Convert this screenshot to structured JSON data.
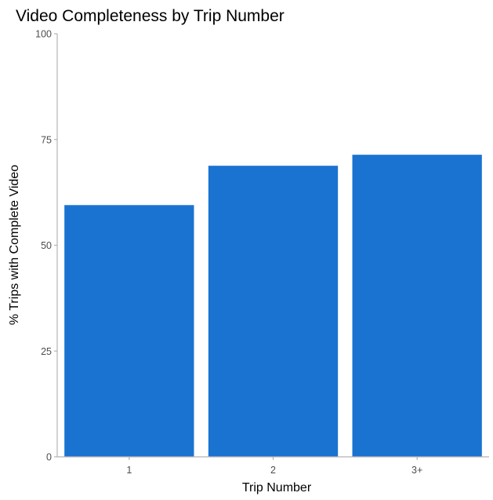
{
  "chart_data": {
    "type": "bar",
    "title": "Video Completeness by Trip Number",
    "xlabel": "Trip Number",
    "ylabel": "% Trips with Complete Video",
    "categories": [
      "1",
      "2",
      "3+"
    ],
    "values": [
      59.5,
      68.8,
      71.4
    ],
    "ylim": [
      0,
      100
    ],
    "yticks": [
      0,
      25,
      50,
      75,
      100
    ],
    "ytick_labels": [
      "0",
      "25",
      "50",
      "75",
      "100"
    ],
    "grid": false,
    "legend": "none",
    "bar_color": "#1a73d0"
  }
}
